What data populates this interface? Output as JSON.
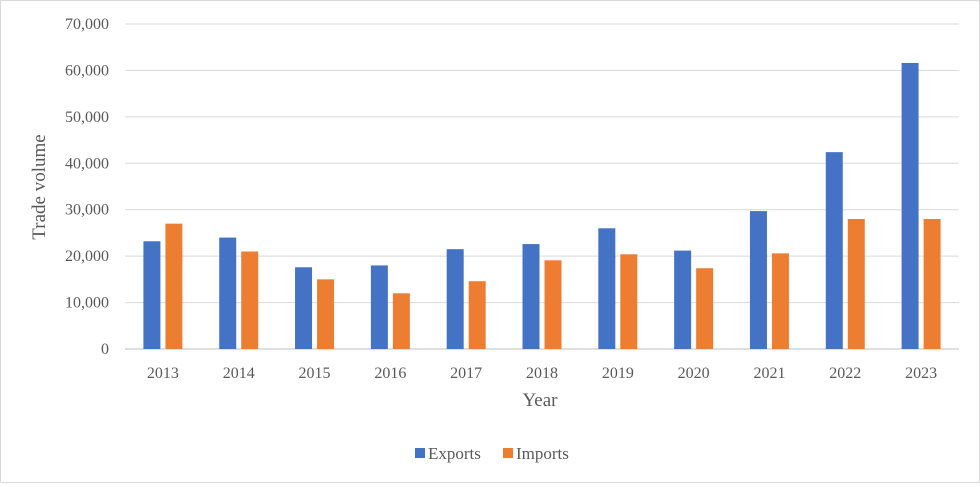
{
  "chart_data": {
    "type": "bar",
    "title": "",
    "xlabel": "Year",
    "ylabel": "Trade volume",
    "ylim": [
      0,
      70000
    ],
    "ytick_step": 10000,
    "grid": true,
    "legend_position": "bottom",
    "categories": [
      "2013",
      "2014",
      "2015",
      "2016",
      "2017",
      "2018",
      "2019",
      "2020",
      "2021",
      "2022",
      "2023"
    ],
    "series": [
      {
        "name": "Exports",
        "color": "#4472c4",
        "values": [
          23200,
          24000,
          17600,
          18000,
          21500,
          22600,
          26000,
          21200,
          29700,
          42400,
          61600
        ]
      },
      {
        "name": "Imports",
        "color": "#ed7d31",
        "values": [
          27000,
          21000,
          15000,
          12000,
          14600,
          19100,
          20400,
          17400,
          20600,
          28000,
          28000
        ]
      }
    ]
  }
}
